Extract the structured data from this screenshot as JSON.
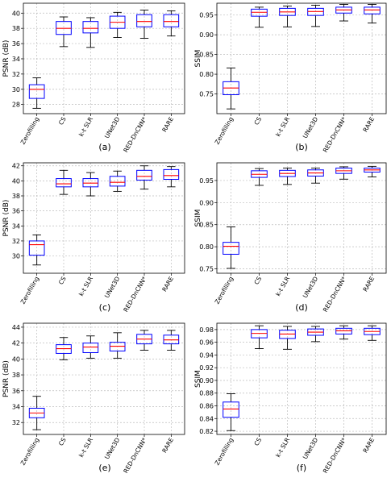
{
  "categories": [
    "Zerofilling",
    "CS",
    "k-t SLR",
    "UNet3D",
    "RED-DnCNN*",
    "RARE"
  ],
  "chart_data": [
    {
      "type": "box",
      "panel": "(a)",
      "ylabel": "PSNR (dB)",
      "ylim": [
        26.8,
        41.3
      ],
      "yticks": [
        28,
        30,
        32,
        34,
        36,
        38,
        40
      ],
      "grid": true,
      "boxes": [
        {
          "category": "Zerofilling",
          "min": 27.5,
          "q1": 28.8,
          "median": 30.0,
          "q3": 30.6,
          "max": 31.5
        },
        {
          "category": "CS",
          "min": 35.6,
          "q1": 37.2,
          "median": 38.0,
          "q3": 38.9,
          "max": 39.5
        },
        {
          "category": "k-t SLR",
          "min": 35.5,
          "q1": 37.4,
          "median": 38.0,
          "q3": 38.9,
          "max": 39.4
        },
        {
          "category": "UNet3D",
          "min": 36.8,
          "q1": 38.0,
          "median": 38.8,
          "q3": 39.6,
          "max": 40.1
        },
        {
          "category": "RED-DnCNN*",
          "min": 36.7,
          "q1": 38.2,
          "median": 38.9,
          "q3": 39.8,
          "max": 40.4
        },
        {
          "category": "RARE",
          "min": 37.0,
          "q1": 38.2,
          "median": 38.9,
          "q3": 39.8,
          "max": 40.3
        }
      ]
    },
    {
      "type": "box",
      "panel": "(b)",
      "ylabel": "SSIM",
      "ylim": [
        0.7,
        0.98
      ],
      "yticks": [
        0.75,
        0.8,
        0.85,
        0.9,
        0.95
      ],
      "grid": true,
      "boxes": [
        {
          "category": "Zerofilling",
          "min": 0.712,
          "q1": 0.748,
          "median": 0.765,
          "q3": 0.781,
          "max": 0.816
        },
        {
          "category": "CS",
          "min": 0.919,
          "q1": 0.947,
          "median": 0.957,
          "q3": 0.965,
          "max": 0.97
        },
        {
          "category": "k-t SLR",
          "min": 0.92,
          "q1": 0.949,
          "median": 0.958,
          "q3": 0.967,
          "max": 0.973
        },
        {
          "category": "UNet3D",
          "min": 0.921,
          "q1": 0.949,
          "median": 0.959,
          "q3": 0.967,
          "max": 0.975
        },
        {
          "category": "RED-DnCNN*",
          "min": 0.935,
          "q1": 0.955,
          "median": 0.963,
          "q3": 0.97,
          "max": 0.977
        },
        {
          "category": "RARE",
          "min": 0.93,
          "q1": 0.953,
          "median": 0.963,
          "q3": 0.97,
          "max": 0.977
        }
      ]
    },
    {
      "type": "box",
      "panel": "(c)",
      "ylabel": "PSNR (dB)",
      "ylim": [
        27.7,
        42.4
      ],
      "yticks": [
        30,
        32,
        34,
        36,
        38,
        40,
        42
      ],
      "grid": true,
      "boxes": [
        {
          "category": "Zerofilling",
          "min": 28.8,
          "q1": 30.1,
          "median": 31.5,
          "q3": 32.0,
          "max": 32.8
        },
        {
          "category": "CS",
          "min": 38.2,
          "q1": 39.2,
          "median": 39.6,
          "q3": 40.3,
          "max": 41.4
        },
        {
          "category": "k-t SLR",
          "min": 38.0,
          "q1": 39.2,
          "median": 39.7,
          "q3": 40.3,
          "max": 41.1
        },
        {
          "category": "UNet3D",
          "min": 38.6,
          "q1": 39.3,
          "median": 39.8,
          "q3": 40.6,
          "max": 41.3
        },
        {
          "category": "RED-DnCNN*",
          "min": 38.9,
          "q1": 40.1,
          "median": 40.6,
          "q3": 41.4,
          "max": 42.0
        },
        {
          "category": "RARE",
          "min": 39.2,
          "q1": 40.2,
          "median": 40.7,
          "q3": 41.5,
          "max": 41.9
        }
      ]
    },
    {
      "type": "box",
      "panel": "(d)",
      "ylabel": "SSIM",
      "ylim": [
        0.74,
        0.99
      ],
      "yticks": [
        0.75,
        0.8,
        0.85,
        0.9,
        0.95
      ],
      "grid": true,
      "boxes": [
        {
          "category": "Zerofilling",
          "min": 0.751,
          "q1": 0.783,
          "median": 0.801,
          "q3": 0.81,
          "max": 0.845
        },
        {
          "category": "CS",
          "min": 0.939,
          "q1": 0.957,
          "median": 0.964,
          "q3": 0.972,
          "max": 0.977
        },
        {
          "category": "k-t SLR",
          "min": 0.941,
          "q1": 0.959,
          "median": 0.966,
          "q3": 0.973,
          "max": 0.978
        },
        {
          "category": "UNet3D",
          "min": 0.944,
          "q1": 0.96,
          "median": 0.967,
          "q3": 0.974,
          "max": 0.978
        },
        {
          "category": "RED-DnCNN*",
          "min": 0.953,
          "q1": 0.966,
          "median": 0.972,
          "q3": 0.978,
          "max": 0.981
        },
        {
          "category": "RARE",
          "min": 0.958,
          "q1": 0.969,
          "median": 0.974,
          "q3": 0.978,
          "max": 0.982
        }
      ]
    },
    {
      "type": "box",
      "panel": "(e)",
      "ylabel": "PSNR (dB)",
      "ylim": [
        30.5,
        44.5
      ],
      "yticks": [
        32,
        34,
        36,
        38,
        40,
        42,
        44
      ],
      "grid": true,
      "boxes": [
        {
          "category": "Zerofilling",
          "min": 31.1,
          "q1": 32.6,
          "median": 33.2,
          "q3": 33.8,
          "max": 35.3
        },
        {
          "category": "CS",
          "min": 39.9,
          "q1": 40.7,
          "median": 41.3,
          "q3": 41.8,
          "max": 42.7
        },
        {
          "category": "k-t SLR",
          "min": 40.1,
          "q1": 40.8,
          "median": 41.5,
          "q3": 42.0,
          "max": 42.9
        },
        {
          "category": "UNet3D",
          "min": 40.1,
          "q1": 41.0,
          "median": 41.6,
          "q3": 42.1,
          "max": 43.3
        },
        {
          "category": "RED-DnCNN*",
          "min": 41.1,
          "q1": 41.9,
          "median": 42.5,
          "q3": 43.1,
          "max": 43.6
        },
        {
          "category": "RARE",
          "min": 41.1,
          "q1": 41.9,
          "median": 42.4,
          "q3": 43.0,
          "max": 43.6
        }
      ]
    },
    {
      "type": "box",
      "panel": "(f)",
      "ylabel": "SSIM",
      "ylim": [
        0.815,
        0.99
      ],
      "yticks": [
        0.82,
        0.84,
        0.86,
        0.88,
        0.9,
        0.92,
        0.94,
        0.96,
        0.98
      ],
      "grid": true,
      "boxes": [
        {
          "category": "Zerofilling",
          "min": 0.821,
          "q1": 0.842,
          "median": 0.855,
          "q3": 0.866,
          "max": 0.879
        },
        {
          "category": "CS",
          "min": 0.95,
          "q1": 0.967,
          "median": 0.974,
          "q3": 0.98,
          "max": 0.986
        },
        {
          "category": "k-t SLR",
          "min": 0.949,
          "q1": 0.966,
          "median": 0.973,
          "q3": 0.979,
          "max": 0.985
        },
        {
          "category": "UNet3D",
          "min": 0.961,
          "q1": 0.971,
          "median": 0.976,
          "q3": 0.981,
          "max": 0.985
        },
        {
          "category": "RED-DnCNN*",
          "min": 0.965,
          "q1": 0.973,
          "median": 0.978,
          "q3": 0.982,
          "max": 0.986
        },
        {
          "category": "RARE",
          "min": 0.963,
          "q1": 0.972,
          "median": 0.977,
          "q3": 0.982,
          "max": 0.986
        }
      ]
    }
  ]
}
